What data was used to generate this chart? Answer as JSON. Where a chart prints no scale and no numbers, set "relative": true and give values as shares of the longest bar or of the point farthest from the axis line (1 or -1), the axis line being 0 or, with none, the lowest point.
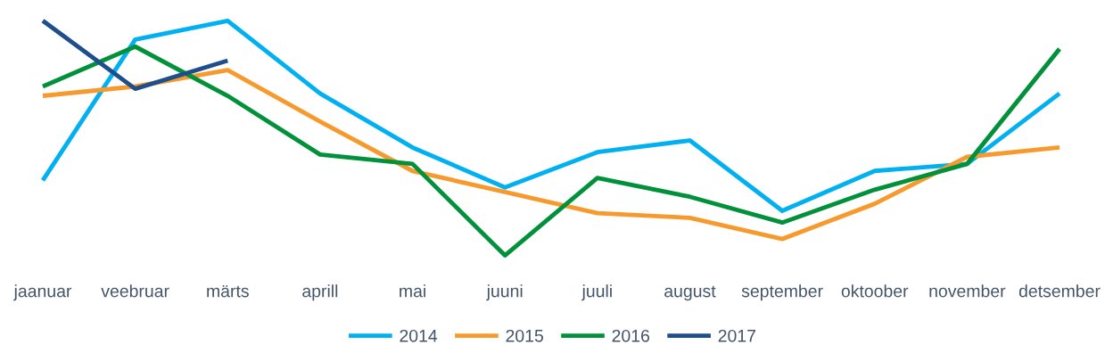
{
  "chart_data": {
    "type": "line",
    "relative": true,
    "legend": "bottom",
    "grid": false,
    "marker": "none",
    "line_style": "solid",
    "categories": [
      "jaanuar",
      "veebruar",
      "märts",
      "aprill",
      "mai",
      "juuni",
      "juuli",
      "august",
      "september",
      "oktoober",
      "november",
      "detsember"
    ],
    "series": [
      {
        "name": "2014",
        "color": "#00b0f0",
        "values": [
          0.32,
          0.92,
          1.0,
          0.69,
          0.46,
          0.29,
          0.44,
          0.49,
          0.19,
          0.36,
          0.39,
          0.69
        ]
      },
      {
        "name": "2015",
        "color": "#f79a2e",
        "values": [
          0.68,
          0.72,
          0.79,
          0.57,
          0.36,
          0.27,
          0.18,
          0.16,
          0.07,
          0.22,
          0.42,
          0.46
        ]
      },
      {
        "name": "2016",
        "color": "#00913a",
        "values": [
          0.72,
          0.89,
          0.68,
          0.43,
          0.39,
          0.0,
          0.33,
          0.25,
          0.14,
          0.28,
          0.39,
          0.88
        ]
      },
      {
        "name": "2017",
        "color": "#1f4e8c",
        "values": [
          1.0,
          0.71,
          0.83,
          null,
          null,
          null,
          null,
          null,
          null,
          null,
          null,
          null
        ]
      }
    ]
  }
}
